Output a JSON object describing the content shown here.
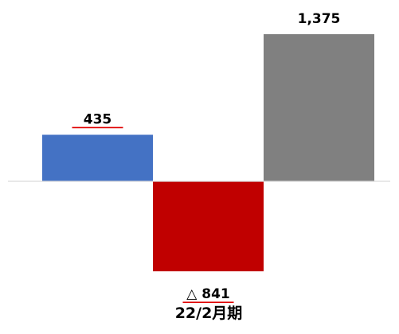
{
  "chart_data": {
    "type": "bar",
    "categories": [
      "",
      "",
      ""
    ],
    "values": [
      435,
      -841,
      1375
    ],
    "value_labels": [
      "435",
      "△ 841",
      "1,375"
    ],
    "underlined_labels": [
      true,
      true,
      false
    ],
    "colors": [
      "#4472C4",
      "#C00000",
      "#808080"
    ],
    "underline_color": "#E00000",
    "axis_color": "#D9D9D9",
    "period_label": "22/2月期",
    "title": "",
    "xlabel": "",
    "ylabel": "",
    "grid": false,
    "legend": "none"
  }
}
